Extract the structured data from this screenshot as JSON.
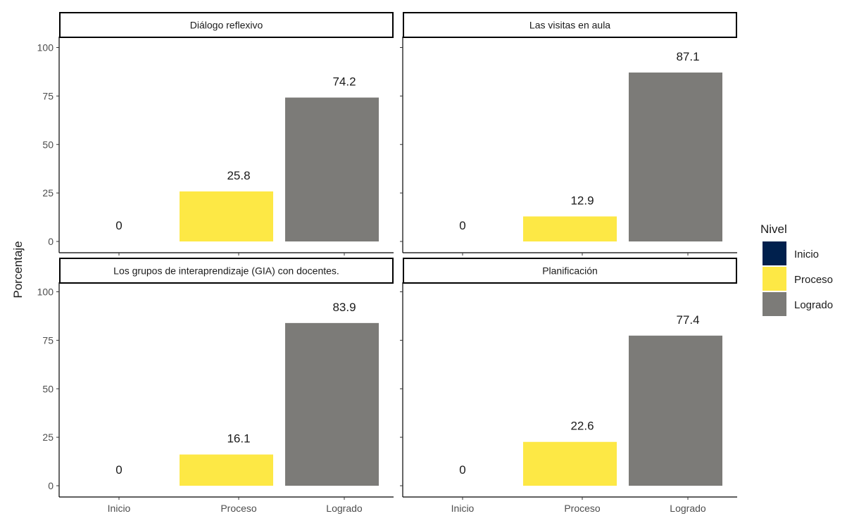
{
  "chart_data": {
    "type": "bar",
    "ylabel": "Porcentaje",
    "ylim": [
      0,
      100
    ],
    "yticks": [
      0,
      25,
      50,
      75,
      100
    ],
    "categories": [
      "Inicio",
      "Proceso",
      "Logrado"
    ],
    "legend": {
      "title": "Nivel",
      "placement": "right",
      "entries": [
        {
          "label": "Inicio",
          "color": "#00204d"
        },
        {
          "label": "Proceso",
          "color": "#fde845"
        },
        {
          "label": "Logrado",
          "color": "#7c7b78"
        }
      ]
    },
    "panels": [
      {
        "title": "Diálogo reflexivo",
        "values": [
          0,
          25.8,
          74.2
        ],
        "labels": [
          "0",
          "25.8",
          "74.2"
        ]
      },
      {
        "title": "Las visitas en aula",
        "values": [
          0,
          12.9,
          87.1
        ],
        "labels": [
          "0",
          "12.9",
          "87.1"
        ]
      },
      {
        "title": "Los grupos de interaprendizaje (GIA) con docentes.",
        "values": [
          0,
          16.1,
          83.9
        ],
        "labels": [
          "0",
          "16.1",
          "83.9"
        ]
      },
      {
        "title": "Planificación",
        "values": [
          0,
          22.6,
          77.4
        ],
        "labels": [
          "0",
          "22.6",
          "77.4"
        ]
      }
    ]
  }
}
